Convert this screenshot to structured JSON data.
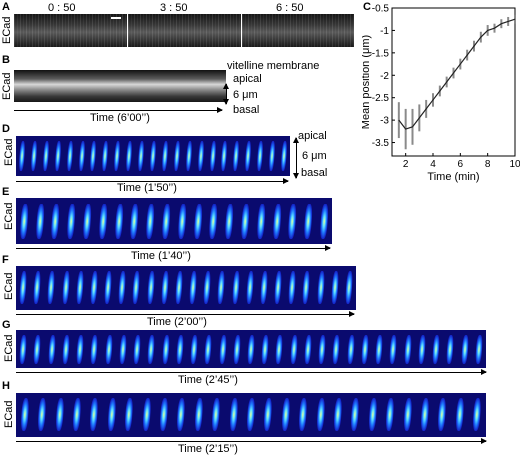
{
  "panels": {
    "a": {
      "letter": "A",
      "ylabel": "ECad",
      "frame_times": [
        "0 : 50",
        "3 : 50",
        "6 : 50"
      ]
    },
    "b": {
      "letter": "B",
      "ylabel": "ECad",
      "vitelline": "vitelline membrane",
      "apical": "apical",
      "depth": "6 μm",
      "basal": "basal",
      "time": "Time (6’00’’)"
    },
    "c": {
      "letter": "C"
    },
    "d": {
      "letter": "D",
      "ylabel": "ECad",
      "time": "Time (1’50’’)",
      "apical": "apical",
      "depth": "6 μm",
      "basal": "basal",
      "frames": 23
    },
    "e": {
      "letter": "E",
      "ylabel": "ECad",
      "time": "Time (1’40’’)",
      "frames": 20
    },
    "f": {
      "letter": "F",
      "ylabel": "ECad",
      "time": "Time (2’00’’)",
      "frames": 24
    },
    "g": {
      "letter": "G",
      "ylabel": "ECad",
      "time": "Time (2’45’’)",
      "frames": 33
    },
    "h": {
      "letter": "H",
      "ylabel": "ECad",
      "time": "Time (2’15’’)",
      "frames": 27
    }
  },
  "chart_data": {
    "type": "line",
    "xlabel": "Time (min)",
    "ylabel": "Mean position (μm)",
    "xlim": [
      1,
      10
    ],
    "ylim": [
      -3.8,
      -0.5
    ],
    "xticks": [
      2,
      4,
      6,
      8,
      10
    ],
    "yticks": [
      -3.5,
      -3,
      -2.5,
      -2,
      -1.5,
      -1,
      -0.5
    ],
    "grid": false,
    "series": [
      {
        "x": [
          1.5,
          2.0,
          2.5,
          3.0,
          3.5,
          4.0,
          4.5,
          5.0,
          5.5,
          6.0,
          6.5,
          7.0,
          7.5,
          8.0,
          8.5,
          9.0,
          9.5,
          10.0
        ],
        "y": [
          -3.0,
          -3.2,
          -3.15,
          -2.95,
          -2.75,
          -2.55,
          -2.35,
          -2.15,
          -1.95,
          -1.75,
          -1.55,
          -1.35,
          -1.15,
          -1.0,
          -0.95,
          -0.85,
          -0.8,
          -0.75
        ],
        "error": [
          0.4,
          0.45,
          0.4,
          0.3,
          0.2,
          0.15,
          0.12,
          0.12,
          0.12,
          0.12,
          0.12,
          0.12,
          0.12,
          0.12,
          0.1,
          0.1,
          0.1,
          0.1
        ],
        "line_color": "#222222",
        "error_color": "#8a8a8a"
      }
    ]
  }
}
